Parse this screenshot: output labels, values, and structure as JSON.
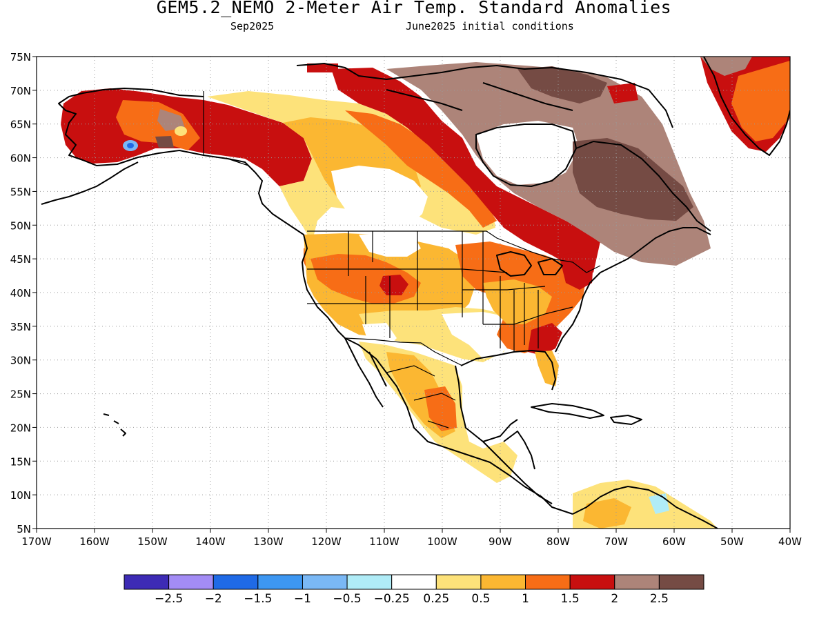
{
  "header": {
    "title": "GEM5.2_NEMO 2-Meter Air Temp. Standard Anomalies",
    "valid_month": "Sep2025",
    "init_conditions": "June2025 initial conditions"
  },
  "map": {
    "type": "map",
    "projection": "cylindrical lat/lon",
    "lon_range": [
      -170,
      -40
    ],
    "lat_range": [
      5,
      75
    ],
    "lon_ticks": [
      {
        "value": -170,
        "label": "170W"
      },
      {
        "value": -160,
        "label": "160W"
      },
      {
        "value": -150,
        "label": "150W"
      },
      {
        "value": -140,
        "label": "140W"
      },
      {
        "value": -130,
        "label": "130W"
      },
      {
        "value": -120,
        "label": "120W"
      },
      {
        "value": -110,
        "label": "110W"
      },
      {
        "value": -100,
        "label": "100W"
      },
      {
        "value": -90,
        "label": "90W"
      },
      {
        "value": -80,
        "label": "80W"
      },
      {
        "value": -70,
        "label": "70W"
      },
      {
        "value": -60,
        "label": "60W"
      },
      {
        "value": -50,
        "label": "50W"
      },
      {
        "value": -40,
        "label": "40W"
      }
    ],
    "lat_ticks": [
      {
        "value": 75,
        "label": "75N"
      },
      {
        "value": 70,
        "label": "70N"
      },
      {
        "value": 65,
        "label": "65N"
      },
      {
        "value": 60,
        "label": "60N"
      },
      {
        "value": 55,
        "label": "55N"
      },
      {
        "value": 50,
        "label": "50N"
      },
      {
        "value": 45,
        "label": "45N"
      },
      {
        "value": 40,
        "label": "40N"
      },
      {
        "value": 35,
        "label": "35N"
      },
      {
        "value": 30,
        "label": "30N"
      },
      {
        "value": 25,
        "label": "25N"
      },
      {
        "value": 20,
        "label": "20N"
      },
      {
        "value": 15,
        "label": "15N"
      },
      {
        "value": 10,
        "label": "10N"
      },
      {
        "value": 5,
        "label": "5N"
      }
    ],
    "gridlines": true
  },
  "colorbar": {
    "colors": [
      "#3d2bb5",
      "#a38cf5",
      "#1f6ae6",
      "#3d97f2",
      "#7ab8f5",
      "#b0ecf7",
      "#ffffff",
      "#fde27a",
      "#fbb732",
      "#f76d16",
      "#c80f0f",
      "#ad8479",
      "#754b44"
    ],
    "labels": [
      "-2.5",
      "-2",
      "-1.5",
      "-1",
      "-0.5",
      "-0.25",
      "0.25",
      "0.5",
      "1",
      "1.5",
      "2",
      "2.5"
    ]
  }
}
